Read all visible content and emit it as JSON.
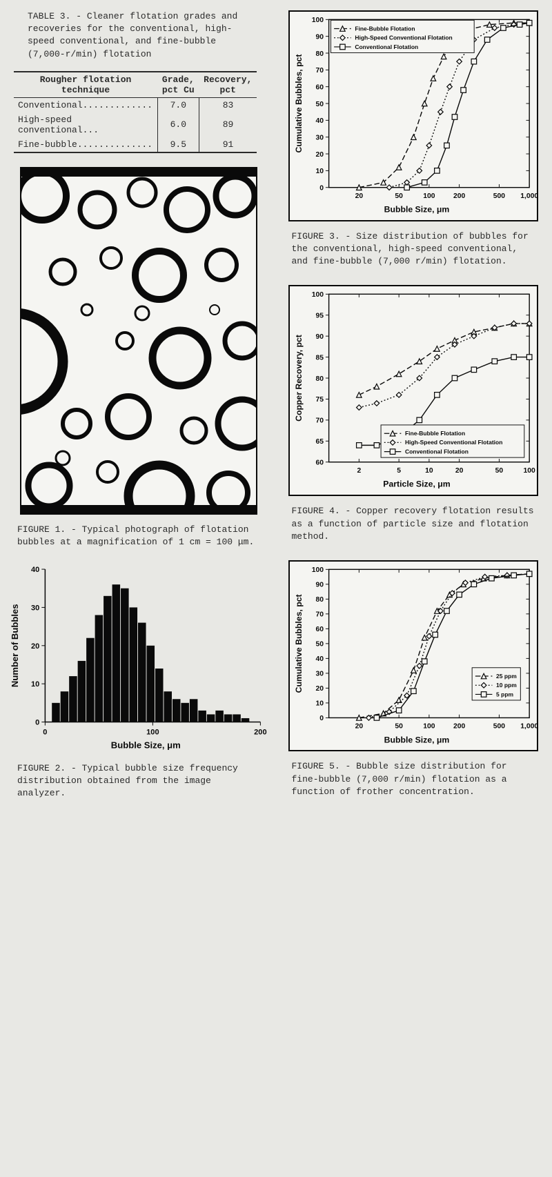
{
  "table3": {
    "title": "TABLE 3. - Cleaner flotation grades and recoveries for the conventional, high-speed conventional, and fine-bubble (7,000-r/min) flotation",
    "columns": [
      "Rougher flotation technique",
      "Grade, pct Cu",
      "Recovery, pct"
    ],
    "rows": [
      [
        "Conventional.............",
        "7.0",
        "83"
      ],
      [
        "High-speed conventional...",
        "6.0",
        "89"
      ],
      [
        "Fine-bubble..............",
        "9.5",
        "91"
      ]
    ]
  },
  "fig1": {
    "caption": "FIGURE 1. - Typical photograph of flotation bubbles at a magnification of 1 cm = 100 μm."
  },
  "fig2": {
    "caption": "FIGURE 2. - Typical bubble size frequency distribution obtained from the image analyzer.",
    "type": "bar",
    "xlabel": "Bubble Size, μm",
    "ylabel": "Number of Bubbles",
    "xlim": [
      0,
      200
    ],
    "ylim": [
      0,
      40
    ],
    "xticks": [
      0,
      100,
      200
    ],
    "yticks": [
      0,
      10,
      20,
      30,
      40
    ],
    "bar_color": "#0a0a0a",
    "background": "#f5f5f2",
    "x_values": [
      10,
      18,
      26,
      34,
      42,
      50,
      58,
      66,
      74,
      82,
      90,
      98,
      106,
      114,
      122,
      130,
      138,
      146,
      154,
      162,
      170,
      178,
      186
    ],
    "y_values": [
      5,
      8,
      12,
      16,
      22,
      28,
      33,
      36,
      35,
      30,
      26,
      20,
      14,
      8,
      6,
      5,
      6,
      3,
      2,
      3,
      2,
      2,
      1
    ]
  },
  "fig3": {
    "caption": "FIGURE 3. - Size distribution of bubbles for the conventional, high-speed conventional, and fine-bubble (7,000 r/min) flotation.",
    "type": "line",
    "xlabel": "Bubble Size, μm",
    "ylabel": "Cumulative Bubbles, pct",
    "xlim": [
      10,
      1000
    ],
    "ylim": [
      0,
      100
    ],
    "xticks": [
      20,
      50,
      100,
      200,
      500,
      1000
    ],
    "yticks": [
      0,
      10,
      20,
      30,
      40,
      50,
      60,
      70,
      80,
      90,
      100
    ],
    "xscale": "log",
    "background": "#f5f5f2",
    "series": [
      {
        "label": "Fine-Bubble Flotation",
        "marker": "triangle",
        "dash": "8,4",
        "color": "#0a0a0a",
        "x": [
          20,
          35,
          50,
          70,
          90,
          110,
          140,
          180,
          250,
          400,
          700,
          1000
        ],
        "y": [
          0,
          3,
          12,
          30,
          50,
          65,
          78,
          88,
          94,
          97,
          98,
          98
        ]
      },
      {
        "label": "High-Speed Conventional Flotation",
        "marker": "diamond",
        "dash": "2,3",
        "color": "#0a0a0a",
        "x": [
          40,
          60,
          80,
          100,
          130,
          160,
          200,
          280,
          450,
          700,
          1000
        ],
        "y": [
          0,
          3,
          10,
          25,
          45,
          60,
          75,
          88,
          95,
          97,
          98
        ]
      },
      {
        "label": "Conventional Flotation",
        "marker": "square",
        "dash": "none",
        "color": "#0a0a0a",
        "x": [
          60,
          90,
          120,
          150,
          180,
          220,
          280,
          380,
          550,
          800,
          1000
        ],
        "y": [
          0,
          3,
          10,
          25,
          42,
          58,
          75,
          88,
          95,
          97,
          98
        ]
      }
    ]
  },
  "fig4": {
    "caption": "FIGURE 4. - Copper recovery flotation results as a function of particle size and flotation method.",
    "type": "line",
    "xlabel": "Particle Size, μm",
    "ylabel": "Copper Recovery, pct",
    "xlim": [
      1,
      100
    ],
    "ylim": [
      60,
      100
    ],
    "xticks": [
      2,
      5,
      10,
      20,
      50,
      100
    ],
    "yticks": [
      60,
      65,
      70,
      75,
      80,
      85,
      90,
      95,
      100
    ],
    "xscale": "log",
    "background": "#f5f5f2",
    "series": [
      {
        "label": "Fine-Bubble Flotation",
        "marker": "triangle",
        "dash": "8,4",
        "color": "#0a0a0a",
        "x": [
          2,
          3,
          5,
          8,
          12,
          18,
          28,
          45,
          70,
          100
        ],
        "y": [
          76,
          78,
          81,
          84,
          87,
          89,
          91,
          92,
          93,
          93
        ]
      },
      {
        "label": "High-Speed Conventional Flotation",
        "marker": "diamond",
        "dash": "2,3",
        "color": "#0a0a0a",
        "x": [
          2,
          3,
          5,
          8,
          12,
          18,
          28,
          45,
          70,
          100
        ],
        "y": [
          73,
          74,
          76,
          80,
          85,
          88,
          90,
          92,
          93,
          93
        ]
      },
      {
        "label": "Conventional Flotation",
        "marker": "square",
        "dash": "none",
        "color": "#0a0a0a",
        "x": [
          2,
          3,
          5,
          8,
          12,
          18,
          28,
          45,
          70,
          100
        ],
        "y": [
          64,
          64,
          66,
          70,
          76,
          80,
          82,
          84,
          85,
          85
        ]
      }
    ]
  },
  "fig5": {
    "caption": "FIGURE 5. - Bubble size distribution for fine-bubble (7,000 r/min) flotation as a function of frother concentration.",
    "type": "line",
    "xlabel": "Bubble Size, μm",
    "ylabel": "Cumulative Bubbles, pct",
    "xlim": [
      10,
      1000
    ],
    "ylim": [
      0,
      100
    ],
    "xticks": [
      20,
      50,
      100,
      200,
      500,
      1000
    ],
    "yticks": [
      0,
      10,
      20,
      30,
      40,
      50,
      60,
      70,
      80,
      90,
      100
    ],
    "xscale": "log",
    "background": "#f5f5f2",
    "series": [
      {
        "label": "25 ppm",
        "marker": "triangle",
        "dash": "8,4",
        "color": "#0a0a0a",
        "x": [
          20,
          35,
          50,
          70,
          90,
          120,
          160,
          220,
          350,
          600,
          1000
        ],
        "y": [
          0,
          3,
          12,
          32,
          54,
          72,
          83,
          90,
          94,
          96,
          97
        ]
      },
      {
        "label": "10 ppm",
        "marker": "diamond",
        "dash": "2,3",
        "color": "#0a0a0a",
        "x": [
          25,
          40,
          60,
          80,
          100,
          130,
          170,
          230,
          360,
          600,
          1000
        ],
        "y": [
          0,
          4,
          15,
          35,
          55,
          72,
          84,
          91,
          95,
          96,
          97
        ]
      },
      {
        "label": "5 ppm",
        "marker": "square",
        "dash": "none",
        "color": "#0a0a0a",
        "x": [
          30,
          50,
          70,
          90,
          115,
          150,
          200,
          280,
          420,
          700,
          1000
        ],
        "y": [
          0,
          5,
          18,
          38,
          56,
          72,
          83,
          90,
          94,
          96,
          97
        ]
      }
    ]
  }
}
